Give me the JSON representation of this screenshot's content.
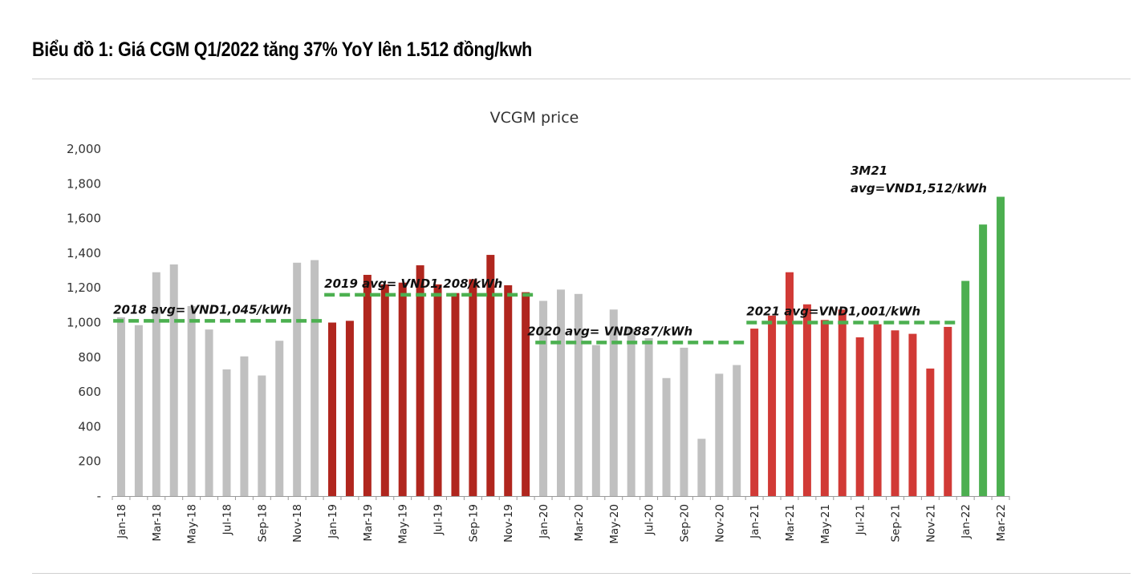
{
  "heading": "Biểu đồ 1: Giá CGM Q1/2022 tăng 37% YoY lên 1.512 đồng/kwh",
  "colors": {
    "gray_bar": "#c0c0c0",
    "red_bar_2019": "#b0261e",
    "red_bar_2021": "#d13a36",
    "green_bar": "#4caf50",
    "avg_line": "#4cb050"
  },
  "chart_data": {
    "type": "bar",
    "title": "VCGM price",
    "xlabel": "",
    "ylabel": "",
    "ylim": [
      0,
      2000
    ],
    "yticks": [
      0,
      200,
      400,
      600,
      800,
      1000,
      1200,
      1400,
      1600,
      1800,
      2000
    ],
    "ytick_labels": [
      "-",
      "200",
      "400",
      "600",
      "800",
      "1,000",
      "1,200",
      "1,400",
      "1,600",
      "1,800",
      "2,000"
    ],
    "categories": [
      "Jan-18",
      "Feb-18",
      "Mar-18",
      "Apr-18",
      "May-18",
      "Jun-18",
      "Jul-18",
      "Aug-18",
      "Sep-18",
      "Oct-18",
      "Nov-18",
      "Dec-18",
      "Jan-19",
      "Feb-19",
      "Mar-19",
      "Apr-19",
      "May-19",
      "Jun-19",
      "Jul-19",
      "Aug-19",
      "Sep-19",
      "Oct-19",
      "Nov-19",
      "Dec-19",
      "Jan-20",
      "Feb-20",
      "Mar-20",
      "Apr-20",
      "May-20",
      "Jun-20",
      "Jul-20",
      "Aug-20",
      "Sep-20",
      "Oct-20",
      "Nov-20",
      "Dec-20",
      "Jan-21",
      "Feb-21",
      "Mar-21",
      "Apr-21",
      "May-21",
      "Jun-21",
      "Jul-21",
      "Aug-21",
      "Sep-21",
      "Oct-21",
      "Nov-21",
      "Dec-21",
      "Jan-22",
      "Feb-22",
      "Mar-22"
    ],
    "xtick_labels": [
      "Jan-18",
      "",
      "Mar-18",
      "",
      "May-18",
      "",
      "Jul-18",
      "",
      "Sep-18",
      "",
      "Nov-18",
      "",
      "Jan-19",
      "",
      "Mar-19",
      "",
      "May-19",
      "",
      "Jul-19",
      "",
      "Sep-19",
      "",
      "Nov-19",
      "",
      "Jan-20",
      "",
      "Mar-20",
      "",
      "May-20",
      "",
      "Jul-20",
      "",
      "Sep-20",
      "",
      "Nov-20",
      "",
      "Jan-21",
      "",
      "Mar-21",
      "",
      "May-21",
      "",
      "Jul-21",
      "",
      "Sep-21",
      "",
      "Nov-21",
      "",
      "Jan-22",
      "",
      "Mar-22"
    ],
    "values": [
      1030,
      985,
      1290,
      1335,
      1095,
      960,
      730,
      805,
      695,
      895,
      1345,
      1360,
      1000,
      1010,
      1275,
      1220,
      1230,
      1330,
      1220,
      1170,
      1250,
      1390,
      1215,
      1175,
      1125,
      1190,
      1165,
      870,
      1075,
      965,
      910,
      680,
      855,
      330,
      705,
      755,
      965,
      1040,
      1290,
      1105,
      1015,
      1075,
      915,
      990,
      955,
      935,
      735,
      975,
      1240,
      1565,
      1725
    ],
    "bar_groups": [
      {
        "name": "2018",
        "start": 0,
        "end": 11,
        "color": "gray_bar"
      },
      {
        "name": "2019",
        "start": 12,
        "end": 23,
        "color": "red_bar_2019"
      },
      {
        "name": "2020",
        "start": 24,
        "end": 35,
        "color": "gray_bar"
      },
      {
        "name": "2021",
        "start": 36,
        "end": 47,
        "color": "red_bar_2021"
      },
      {
        "name": "2022",
        "start": 48,
        "end": 50,
        "color": "green_bar"
      }
    ],
    "annotations": [
      {
        "text": "2018 avg= VND1,045/kWh",
        "line_value": 1010,
        "start": 0,
        "end": 11
      },
      {
        "text": "2019 avg= VND1,208/kWh",
        "line_value": 1160,
        "start": 12,
        "end": 23
      },
      {
        "text": "2020 avg= VND887/kWh",
        "line_value": 885,
        "start": 24,
        "end": 35
      },
      {
        "text": "2021 avg=VND1,001/kWh",
        "line_value": 1000,
        "start": 36,
        "end": 47
      }
    ],
    "top_annotation": {
      "line1": "3M21",
      "line2": "avg=VND1,512/kWh"
    }
  }
}
